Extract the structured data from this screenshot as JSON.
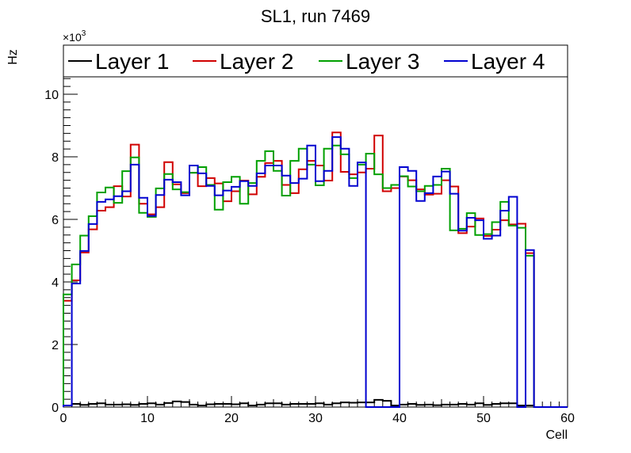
{
  "chart_data": {
    "type": "histogram-step",
    "title": "SL1, run 7469",
    "xlabel": "Cell",
    "ylabel": "Hz",
    "y_multiplier_label": "×10",
    "y_multiplier_exp": "3",
    "xlim": [
      0,
      60
    ],
    "ylim": [
      0,
      11.57
    ],
    "x_ticks": [
      "0",
      "10",
      "20",
      "30",
      "40",
      "50",
      "60"
    ],
    "y_ticks": [
      "0",
      "2",
      "4",
      "6",
      "8",
      "10"
    ],
    "bin_width": 1,
    "legend_position": "top, full-width",
    "series": [
      {
        "name": "Layer 1",
        "color": "#000000",
        "values": [
          0.05,
          0.1,
          0.07,
          0.1,
          0.12,
          0.08,
          0.08,
          0.09,
          0.07,
          0.1,
          0.12,
          0.08,
          0.13,
          0.18,
          0.16,
          0.08,
          0.05,
          0.09,
          0.1,
          0.1,
          0.09,
          0.12,
          0.05,
          0.08,
          0.12,
          0.12,
          0.08,
          0.1,
          0.1,
          0.1,
          0.12,
          0.08,
          0.12,
          0.15,
          0.14,
          0.15,
          0.15,
          0.23,
          0.2,
          0.05,
          0.08,
          0.1,
          0.07,
          0.08,
          0.06,
          0.08,
          0.08,
          0.1,
          0.08,
          0.12,
          0.07,
          0.1,
          0.12,
          0.12,
          0.05,
          0.05,
          0,
          0,
          0,
          0
        ]
      },
      {
        "name": "Layer 2",
        "color": "#d00000",
        "values": [
          3.4,
          4.05,
          4.94,
          5.68,
          6.28,
          6.39,
          7.06,
          6.73,
          8.39,
          6.5,
          6.16,
          6.39,
          7.83,
          7.12,
          6.84,
          7.49,
          7.06,
          7.32,
          7.15,
          6.58,
          6.9,
          7.24,
          6.8,
          7.36,
          7.8,
          7.87,
          7.1,
          6.84,
          7.6,
          7.87,
          7.72,
          7.24,
          8.78,
          7.52,
          7.44,
          7.5,
          7.62,
          8.68,
          6.9,
          7.0,
          7.37,
          7.25,
          6.96,
          6.79,
          6.82,
          7.25,
          7.05,
          5.56,
          5.77,
          6.03,
          5.47,
          5.67,
          5.97,
          5.84,
          5.86,
          4.92,
          0,
          0,
          0,
          0
        ]
      },
      {
        "name": "Layer 3",
        "color": "#00a000",
        "values": [
          3.6,
          4.56,
          5.48,
          6.1,
          6.86,
          7.02,
          6.53,
          7.54,
          7.98,
          6.21,
          6.08,
          6.99,
          7.45,
          6.96,
          6.87,
          7.49,
          7.67,
          7.1,
          6.31,
          7.19,
          7.36,
          6.5,
          7.16,
          7.87,
          8.18,
          7.55,
          6.76,
          7.87,
          8.26,
          7.75,
          7.09,
          8.26,
          8.36,
          8.08,
          7.32,
          7.75,
          8.1,
          7.44,
          7.0,
          7.1,
          7.38,
          7.05,
          6.9,
          7.07,
          7.1,
          7.62,
          5.65,
          5.7,
          6.2,
          5.5,
          5.53,
          5.91,
          6.56,
          5.8,
          5.73,
          4.84,
          0,
          0,
          0,
          0
        ]
      },
      {
        "name": "Layer 4",
        "color": "#0000d0",
        "values": [
          0.05,
          3.95,
          4.99,
          5.85,
          6.56,
          6.64,
          6.74,
          6.9,
          7.75,
          6.69,
          6.11,
          6.78,
          7.27,
          7.19,
          6.77,
          7.72,
          7.47,
          7.07,
          6.77,
          6.92,
          7.04,
          7.22,
          7.07,
          7.47,
          7.72,
          7.72,
          7.4,
          7.16,
          7.3,
          8.36,
          7.22,
          7.55,
          8.63,
          8.26,
          7.07,
          7.82,
          0,
          0,
          0,
          0,
          7.67,
          7.55,
          6.59,
          6.84,
          7.37,
          7.53,
          6.82,
          5.64,
          6.05,
          5.97,
          5.38,
          5.48,
          6.28,
          6.72,
          0,
          5.02,
          0,
          0,
          0,
          0
        ]
      }
    ]
  }
}
